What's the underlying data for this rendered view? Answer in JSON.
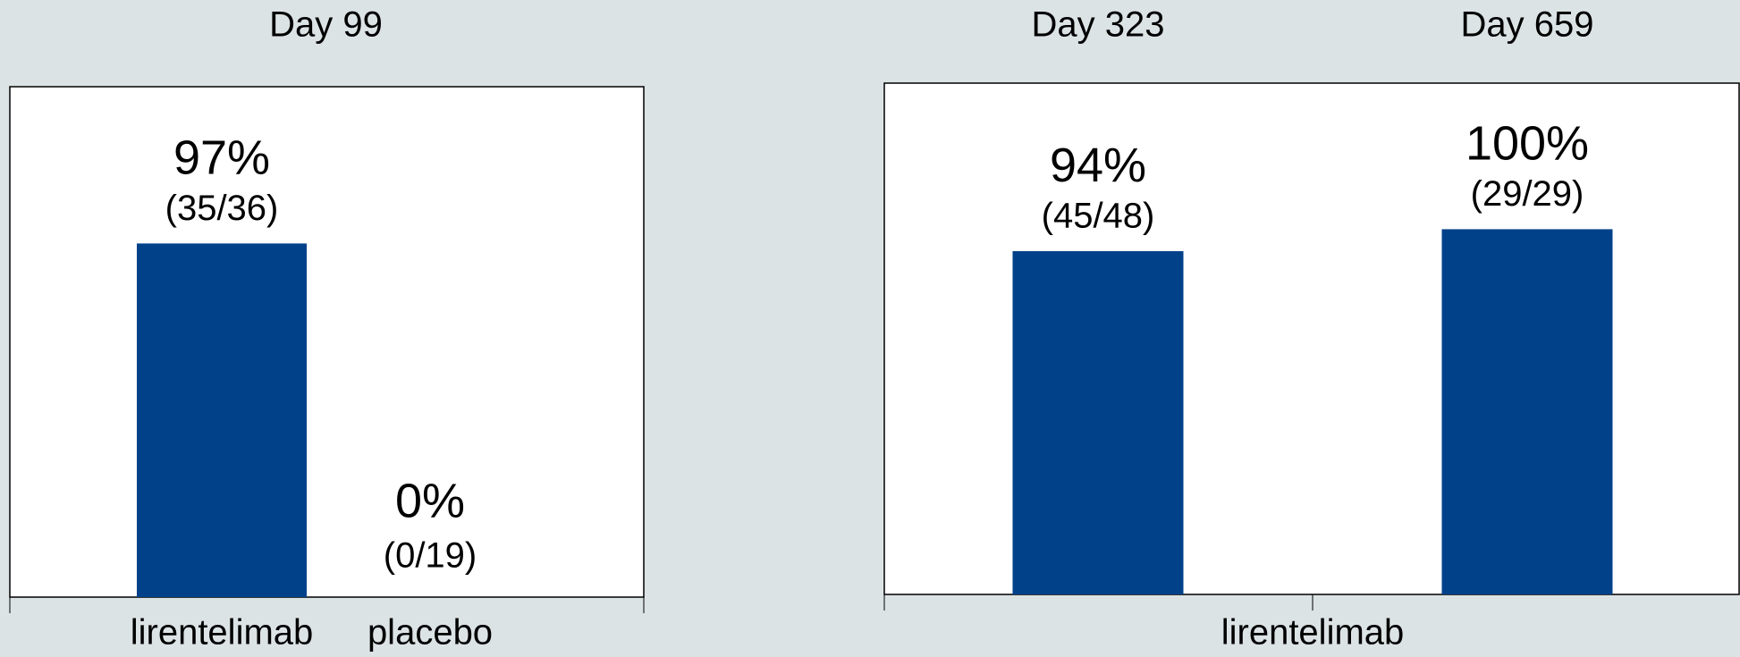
{
  "chart_data": [
    {
      "type": "bar",
      "title": "Day 99",
      "categories": [
        "lirentelimab",
        "placebo"
      ],
      "values": [
        97,
        0
      ],
      "value_labels": [
        "97%",
        "0%"
      ],
      "counts": [
        "(35/36)",
        "(0/19)"
      ],
      "color": "#00418a",
      "ylim": [
        0,
        140
      ]
    },
    {
      "type": "bar",
      "x_label": "lirentelimab",
      "categories": [
        "Day 323",
        "Day 659"
      ],
      "values": [
        94,
        100
      ],
      "value_labels": [
        "94%",
        "100%"
      ],
      "counts": [
        "(45/48)",
        "(29/29)"
      ],
      "color": "#00418a",
      "ylim": [
        0,
        140
      ]
    }
  ]
}
